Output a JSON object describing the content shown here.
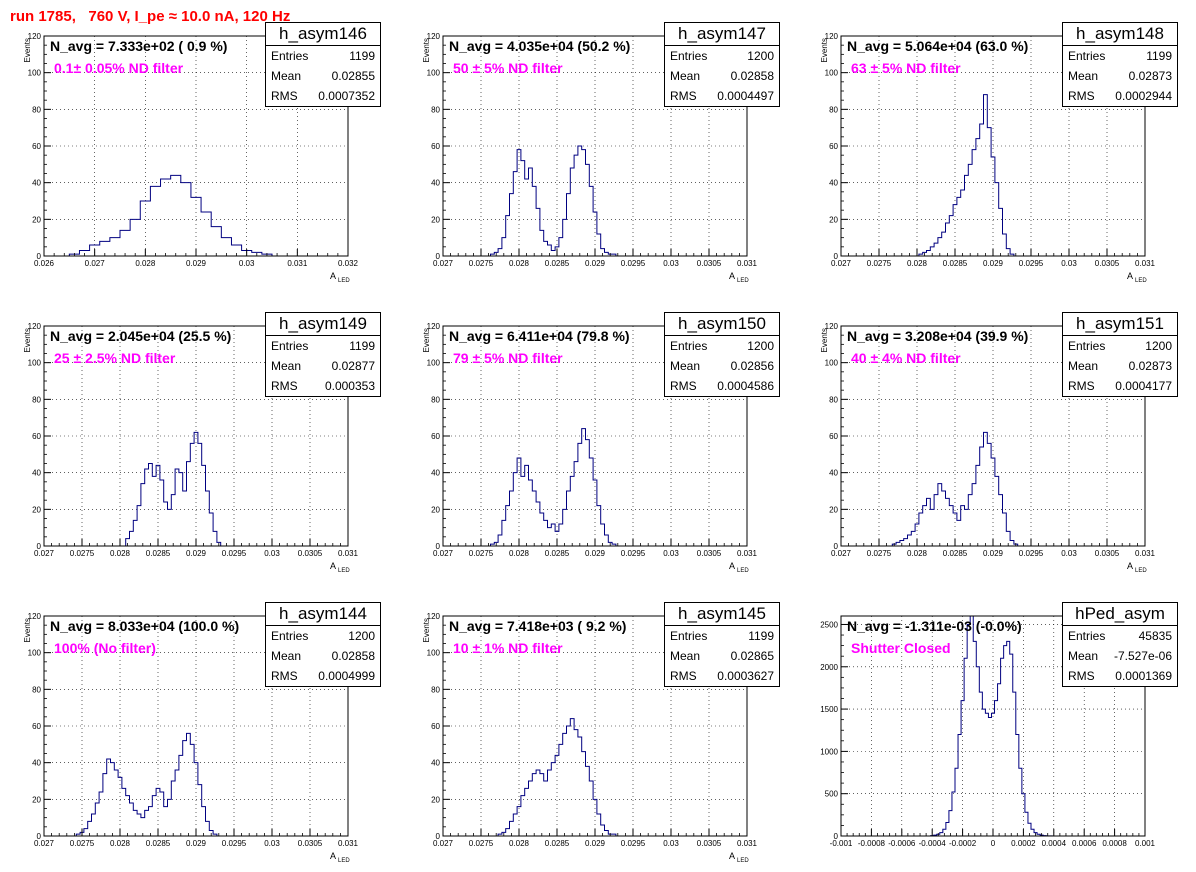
{
  "header": {
    "run_title": "run 1785,   760 V, I_pe ≈ 10.0 nA, 120 Hz"
  },
  "colors": {
    "histogram": "#000080",
    "title": "#ff0000",
    "filter_label": "#ff00ff",
    "grid": "#000000"
  },
  "chart_data": [
    {
      "type": "histogram",
      "name": "h_asym146",
      "navg": "N_avg = 7.333e+02 ( 0.9 %)",
      "label": "0.1± 0.05% ND filter",
      "stats": [
        [
          "Entries",
          "1199"
        ],
        [
          "Mean",
          "0.02855"
        ],
        [
          "RMS",
          "0.0007352"
        ]
      ],
      "xlabel": "A",
      "xlabel_sub": "LED",
      "ylabel": "Events",
      "grid": true,
      "xlim": [
        0.026,
        0.032
      ],
      "ylim": [
        0,
        120
      ],
      "xticks": [
        0.026,
        0.027,
        0.028,
        0.029,
        0.03,
        0.031,
        0.032
      ],
      "xtick_labels": [
        "0.026",
        "0.027",
        "0.028",
        "0.029",
        "0.03",
        "0.031",
        "0.032"
      ],
      "yticks": [
        0,
        20,
        40,
        60,
        80,
        100,
        120
      ],
      "ytick_labels": [
        "0",
        "20",
        "40",
        "60",
        "80",
        "100",
        "120"
      ],
      "x": [
        0.0266,
        0.0268,
        0.027,
        0.0272,
        0.0274,
        0.0276,
        0.0278,
        0.028,
        0.0282,
        0.0284,
        0.0286,
        0.0288,
        0.029,
        0.0292,
        0.0294,
        0.0296,
        0.0298,
        0.03,
        0.0302,
        0.0304
      ],
      "values": [
        1,
        3,
        6,
        8,
        10,
        14,
        20,
        30,
        38,
        42,
        44,
        40,
        32,
        24,
        16,
        10,
        6,
        3,
        2,
        1
      ]
    },
    {
      "type": "histogram",
      "name": "h_asym147",
      "navg": "N_avg = 4.035e+04 (50.2 %)",
      "label": "50 ± 5% ND filter",
      "stats": [
        [
          "Entries",
          "1200"
        ],
        [
          "Mean",
          "0.02858"
        ],
        [
          "RMS",
          "0.0004497"
        ]
      ],
      "xlabel": "A",
      "xlabel_sub": "LED",
      "ylabel": "Events",
      "grid": true,
      "xlim": [
        0.027,
        0.031
      ],
      "ylim": [
        0,
        120
      ],
      "xticks": [
        0.027,
        0.0275,
        0.028,
        0.0285,
        0.029,
        0.0295,
        0.03,
        0.0305,
        0.031
      ],
      "xtick_labels": [
        "0.027",
        "0.0275",
        "0.028",
        "0.0285",
        "0.029",
        "0.0295",
        "0.03",
        "0.0305",
        "0.031"
      ],
      "yticks": [
        0,
        20,
        40,
        60,
        80,
        100,
        120
      ],
      "ytick_labels": [
        "0",
        "20",
        "40",
        "60",
        "80",
        "100",
        "120"
      ],
      "x": [
        0.02765,
        0.0277,
        0.02775,
        0.0278,
        0.02785,
        0.0279,
        0.02795,
        0.028,
        0.02805,
        0.0281,
        0.02815,
        0.0282,
        0.02825,
        0.0283,
        0.02835,
        0.0284,
        0.02845,
        0.0285,
        0.02855,
        0.0286,
        0.02865,
        0.0287,
        0.02875,
        0.0288,
        0.02885,
        0.0289,
        0.02895,
        0.029,
        0.02905,
        0.0291,
        0.02915,
        0.0292,
        0.02925,
        0.0293
      ],
      "values": [
        1,
        2,
        4,
        10,
        22,
        34,
        46,
        58,
        52,
        42,
        48,
        38,
        26,
        14,
        8,
        6,
        3,
        5,
        10,
        20,
        34,
        48,
        55,
        60,
        58,
        50,
        38,
        24,
        12,
        4,
        2,
        1,
        1,
        0
      ]
    },
    {
      "type": "histogram",
      "name": "h_asym148",
      "navg": "N_avg = 5.064e+04 (63.0 %)",
      "label": "63 ± 5% ND filter",
      "stats": [
        [
          "Entries",
          "1199"
        ],
        [
          "Mean",
          "0.02873"
        ],
        [
          "RMS",
          "0.0002944"
        ]
      ],
      "xlabel": "A",
      "xlabel_sub": "LED",
      "ylabel": "Events",
      "grid": true,
      "xlim": [
        0.027,
        0.031
      ],
      "ylim": [
        0,
        120
      ],
      "xticks": [
        0.027,
        0.0275,
        0.028,
        0.0285,
        0.029,
        0.0295,
        0.03,
        0.0305,
        0.031
      ],
      "xtick_labels": [
        "0.027",
        "0.0275",
        "0.028",
        "0.0285",
        "0.029",
        "0.0295",
        "0.03",
        "0.0305",
        "0.031"
      ],
      "yticks": [
        0,
        20,
        40,
        60,
        80,
        100,
        120
      ],
      "ytick_labels": [
        "0",
        "20",
        "40",
        "60",
        "80",
        "100",
        "120"
      ],
      "x": [
        0.02805,
        0.0281,
        0.02815,
        0.0282,
        0.02825,
        0.0283,
        0.02835,
        0.0284,
        0.02845,
        0.0285,
        0.02855,
        0.0286,
        0.02865,
        0.0287,
        0.02875,
        0.0288,
        0.02885,
        0.0289,
        0.02895,
        0.029,
        0.02905,
        0.0291,
        0.02915,
        0.0292,
        0.02925
      ],
      "values": [
        1,
        2,
        3,
        5,
        7,
        10,
        13,
        18,
        22,
        28,
        32,
        36,
        44,
        50,
        58,
        64,
        72,
        88,
        70,
        54,
        40,
        26,
        12,
        4,
        1
      ]
    },
    {
      "type": "histogram",
      "name": "h_asym149",
      "navg": "N_avg = 2.045e+04 (25.5 %)",
      "label": "25 ± 2.5% ND filter",
      "stats": [
        [
          "Entries",
          "1199"
        ],
        [
          "Mean",
          "0.02877"
        ],
        [
          "RMS",
          "0.000353"
        ]
      ],
      "xlabel": "A",
      "xlabel_sub": "LED",
      "ylabel": "Events",
      "grid": true,
      "xlim": [
        0.027,
        0.031
      ],
      "ylim": [
        0,
        120
      ],
      "xticks": [
        0.027,
        0.0275,
        0.028,
        0.0285,
        0.029,
        0.0295,
        0.03,
        0.0305,
        0.031
      ],
      "xtick_labels": [
        "0.027",
        "0.0275",
        "0.028",
        "0.0285",
        "0.029",
        "0.0295",
        "0.03",
        "0.0305",
        "0.031"
      ],
      "yticks": [
        0,
        20,
        40,
        60,
        80,
        100,
        120
      ],
      "ytick_labels": [
        "0",
        "20",
        "40",
        "60",
        "80",
        "100",
        "120"
      ],
      "x": [
        0.0281,
        0.02815,
        0.0282,
        0.02825,
        0.0283,
        0.02835,
        0.0284,
        0.02845,
        0.0285,
        0.02855,
        0.0286,
        0.02865,
        0.0287,
        0.02875,
        0.0288,
        0.02885,
        0.0289,
        0.02895,
        0.029,
        0.02905,
        0.0291,
        0.02915,
        0.0292,
        0.02925,
        0.0293
      ],
      "values": [
        4,
        8,
        14,
        22,
        34,
        42,
        45,
        38,
        44,
        36,
        24,
        20,
        28,
        42,
        40,
        30,
        46,
        56,
        62,
        56,
        44,
        30,
        18,
        8,
        2
      ]
    },
    {
      "type": "histogram",
      "name": "h_asym150",
      "navg": "N_avg = 6.411e+04 (79.8 %)",
      "label": "79 ± 5% ND filter",
      "stats": [
        [
          "Entries",
          "1200"
        ],
        [
          "Mean",
          "0.02856"
        ],
        [
          "RMS",
          "0.0004586"
        ]
      ],
      "xlabel": "A",
      "xlabel_sub": "LED",
      "ylabel": "Events",
      "grid": true,
      "xlim": [
        0.027,
        0.031
      ],
      "ylim": [
        0,
        120
      ],
      "xticks": [
        0.027,
        0.0275,
        0.028,
        0.0285,
        0.029,
        0.0295,
        0.03,
        0.0305,
        0.031
      ],
      "xtick_labels": [
        "0.027",
        "0.0275",
        "0.028",
        "0.0285",
        "0.029",
        "0.0295",
        "0.03",
        "0.0305",
        "0.031"
      ],
      "yticks": [
        0,
        20,
        40,
        60,
        80,
        100,
        120
      ],
      "ytick_labels": [
        "0",
        "20",
        "40",
        "60",
        "80",
        "100",
        "120"
      ],
      "x": [
        0.02765,
        0.0277,
        0.02775,
        0.0278,
        0.02785,
        0.0279,
        0.02795,
        0.028,
        0.02805,
        0.0281,
        0.02815,
        0.0282,
        0.02825,
        0.0283,
        0.02835,
        0.0284,
        0.02845,
        0.0285,
        0.02855,
        0.0286,
        0.02865,
        0.0287,
        0.02875,
        0.0288,
        0.02885,
        0.0289,
        0.02895,
        0.029,
        0.02905,
        0.0291,
        0.02915,
        0.0292,
        0.02925
      ],
      "values": [
        1,
        2,
        6,
        14,
        22,
        30,
        40,
        48,
        38,
        44,
        36,
        30,
        24,
        18,
        14,
        10,
        12,
        8,
        12,
        20,
        30,
        38,
        46,
        56,
        64,
        58,
        48,
        36,
        22,
        12,
        6,
        2,
        1
      ]
    },
    {
      "type": "histogram",
      "name": "h_asym151",
      "navg": "N_avg = 3.208e+04 (39.9 %)",
      "label": "40 ± 4% ND filter",
      "stats": [
        [
          "Entries",
          "1200"
        ],
        [
          "Mean",
          "0.02873"
        ],
        [
          "RMS",
          "0.0004177"
        ]
      ],
      "xlabel": "A",
      "xlabel_sub": "LED",
      "ylabel": "Events",
      "grid": true,
      "xlim": [
        0.027,
        0.031
      ],
      "ylim": [
        0,
        120
      ],
      "xticks": [
        0.027,
        0.0275,
        0.028,
        0.0285,
        0.029,
        0.0295,
        0.03,
        0.0305,
        0.031
      ],
      "xtick_labels": [
        "0.027",
        "0.0275",
        "0.028",
        "0.0285",
        "0.029",
        "0.0295",
        "0.03",
        "0.0305",
        "0.031"
      ],
      "yticks": [
        0,
        20,
        40,
        60,
        80,
        100,
        120
      ],
      "ytick_labels": [
        "0",
        "20",
        "40",
        "60",
        "80",
        "100",
        "120"
      ],
      "x": [
        0.0277,
        0.02775,
        0.0278,
        0.02785,
        0.0279,
        0.02795,
        0.028,
        0.02805,
        0.0281,
        0.02815,
        0.0282,
        0.02825,
        0.0283,
        0.02835,
        0.0284,
        0.02845,
        0.0285,
        0.02855,
        0.0286,
        0.02865,
        0.0287,
        0.02875,
        0.0288,
        0.02885,
        0.0289,
        0.02895,
        0.029,
        0.02905,
        0.0291,
        0.02915,
        0.0292,
        0.02925,
        0.0293
      ],
      "values": [
        1,
        2,
        3,
        4,
        6,
        8,
        12,
        18,
        22,
        26,
        20,
        28,
        34,
        30,
        26,
        22,
        18,
        14,
        22,
        20,
        28,
        34,
        44,
        54,
        62,
        56,
        48,
        38,
        28,
        18,
        8,
        3,
        1
      ]
    },
    {
      "type": "histogram",
      "name": "h_asym144",
      "navg": "N_avg = 8.033e+04 (100.0 %)",
      "label": "100% (No filter)",
      "stats": [
        [
          "Entries",
          "1200"
        ],
        [
          "Mean",
          "0.02858"
        ],
        [
          "RMS",
          "0.0004999"
        ]
      ],
      "xlabel": "A",
      "xlabel_sub": "LED",
      "ylabel": "Events",
      "grid": true,
      "xlim": [
        0.027,
        0.031
      ],
      "ylim": [
        0,
        120
      ],
      "xticks": [
        0.027,
        0.0275,
        0.028,
        0.0285,
        0.029,
        0.0295,
        0.03,
        0.0305,
        0.031
      ],
      "xtick_labels": [
        "0.027",
        "0.0275",
        "0.028",
        "0.0285",
        "0.029",
        "0.0295",
        "0.03",
        "0.0305",
        "0.031"
      ],
      "yticks": [
        0,
        20,
        40,
        60,
        80,
        100,
        120
      ],
      "ytick_labels": [
        "0",
        "20",
        "40",
        "60",
        "80",
        "100",
        "120"
      ],
      "x": [
        0.02745,
        0.0275,
        0.02755,
        0.0276,
        0.02765,
        0.0277,
        0.02775,
        0.0278,
        0.02785,
        0.0279,
        0.02795,
        0.028,
        0.02805,
        0.0281,
        0.02815,
        0.0282,
        0.02825,
        0.0283,
        0.02835,
        0.0284,
        0.02845,
        0.0285,
        0.02855,
        0.0286,
        0.02865,
        0.0287,
        0.02875,
        0.0288,
        0.02885,
        0.0289,
        0.02895,
        0.029,
        0.02905,
        0.0291,
        0.02915,
        0.0292,
        0.02925
      ],
      "values": [
        1,
        2,
        4,
        8,
        12,
        18,
        24,
        34,
        42,
        40,
        36,
        32,
        26,
        22,
        18,
        14,
        12,
        10,
        14,
        16,
        22,
        26,
        24,
        16,
        20,
        30,
        36,
        44,
        52,
        56,
        50,
        40,
        28,
        16,
        8,
        3,
        1
      ]
    },
    {
      "type": "histogram",
      "name": "h_asym145",
      "navg": "N_avg = 7.418e+03 ( 9.2 %)",
      "label": "10 ± 1% ND filter",
      "stats": [
        [
          "Entries",
          "1199"
        ],
        [
          "Mean",
          "0.02865"
        ],
        [
          "RMS",
          "0.0003627"
        ]
      ],
      "xlabel": "A",
      "xlabel_sub": "LED",
      "ylabel": "Events",
      "grid": true,
      "xlim": [
        0.027,
        0.031
      ],
      "ylim": [
        0,
        120
      ],
      "xticks": [
        0.027,
        0.0275,
        0.028,
        0.0285,
        0.029,
        0.0295,
        0.03,
        0.0305,
        0.031
      ],
      "xtick_labels": [
        "0.027",
        "0.0275",
        "0.028",
        "0.0285",
        "0.029",
        "0.0295",
        "0.03",
        "0.0305",
        "0.031"
      ],
      "yticks": [
        0,
        20,
        40,
        60,
        80,
        100,
        120
      ],
      "ytick_labels": [
        "0",
        "20",
        "40",
        "60",
        "80",
        "100",
        "120"
      ],
      "x": [
        0.02775,
        0.0278,
        0.02785,
        0.0279,
        0.02795,
        0.028,
        0.02805,
        0.0281,
        0.02815,
        0.0282,
        0.02825,
        0.0283,
        0.02835,
        0.0284,
        0.02845,
        0.0285,
        0.02855,
        0.0286,
        0.02865,
        0.0287,
        0.02875,
        0.0288,
        0.02885,
        0.0289,
        0.02895,
        0.029,
        0.02905,
        0.0291,
        0.02915,
        0.0292,
        0.02925
      ],
      "values": [
        1,
        2,
        4,
        8,
        12,
        16,
        22,
        26,
        30,
        34,
        36,
        34,
        30,
        36,
        40,
        44,
        50,
        56,
        60,
        64,
        58,
        54,
        46,
        38,
        30,
        20,
        12,
        6,
        3,
        1,
        1
      ]
    },
    {
      "type": "histogram",
      "name": "hPed_asym",
      "navg": "N_avg = -1.311e-03 (-0.0%)",
      "label": "Shutter Closed",
      "stats": [
        [
          "Entries",
          "45835"
        ],
        [
          "Mean",
          "-7.527e-06"
        ],
        [
          "RMS",
          "0.0001369"
        ]
      ],
      "xlabel": "",
      "xlabel_sub": "",
      "ylabel": "",
      "grid": true,
      "xlim": [
        -0.001,
        0.001
      ],
      "ylim": [
        0,
        2600
      ],
      "xticks": [
        -0.001,
        -0.0008,
        -0.0006,
        -0.0004,
        -0.0002,
        0,
        0.0002,
        0.0004,
        0.0006,
        0.0008,
        0.001
      ],
      "xtick_labels": [
        "-0.001",
        "-0.0008",
        "-0.0006",
        "-0.0004",
        "-0.0002",
        "0",
        "0.0002",
        "0.0004",
        "0.0006",
        "0.0008",
        "0.001"
      ],
      "yticks": [
        0,
        500,
        1000,
        1500,
        2000,
        2500
      ],
      "ytick_labels": [
        "0",
        "500",
        "1000",
        "1500",
        "2000",
        "2500"
      ],
      "x": [
        -0.0004,
        -0.00038,
        -0.00036,
        -0.00034,
        -0.00032,
        -0.0003,
        -0.00028,
        -0.00026,
        -0.00024,
        -0.00022,
        -0.0002,
        -0.00018,
        -0.00016,
        -0.00014,
        -0.00012,
        -0.0001,
        -8e-05,
        -6e-05,
        -4e-05,
        -2e-05,
        0,
        2e-05,
        4e-05,
        6e-05,
        8e-05,
        0.0001,
        0.00012,
        0.00014,
        0.00016,
        0.00018,
        0.0002,
        0.00022,
        0.00024,
        0.00026,
        0.00028,
        0.0003,
        0.00032,
        0.00034,
        0.00036,
        0.00038
      ],
      "values": [
        5,
        10,
        20,
        40,
        80,
        160,
        300,
        520,
        800,
        1200,
        1600,
        2100,
        2500,
        2600,
        2300,
        2000,
        1700,
        1500,
        1450,
        1400,
        1450,
        1600,
        1800,
        2100,
        2250,
        2300,
        2150,
        1700,
        1200,
        800,
        500,
        280,
        150,
        80,
        40,
        20,
        10,
        5,
        2,
        1
      ]
    }
  ]
}
